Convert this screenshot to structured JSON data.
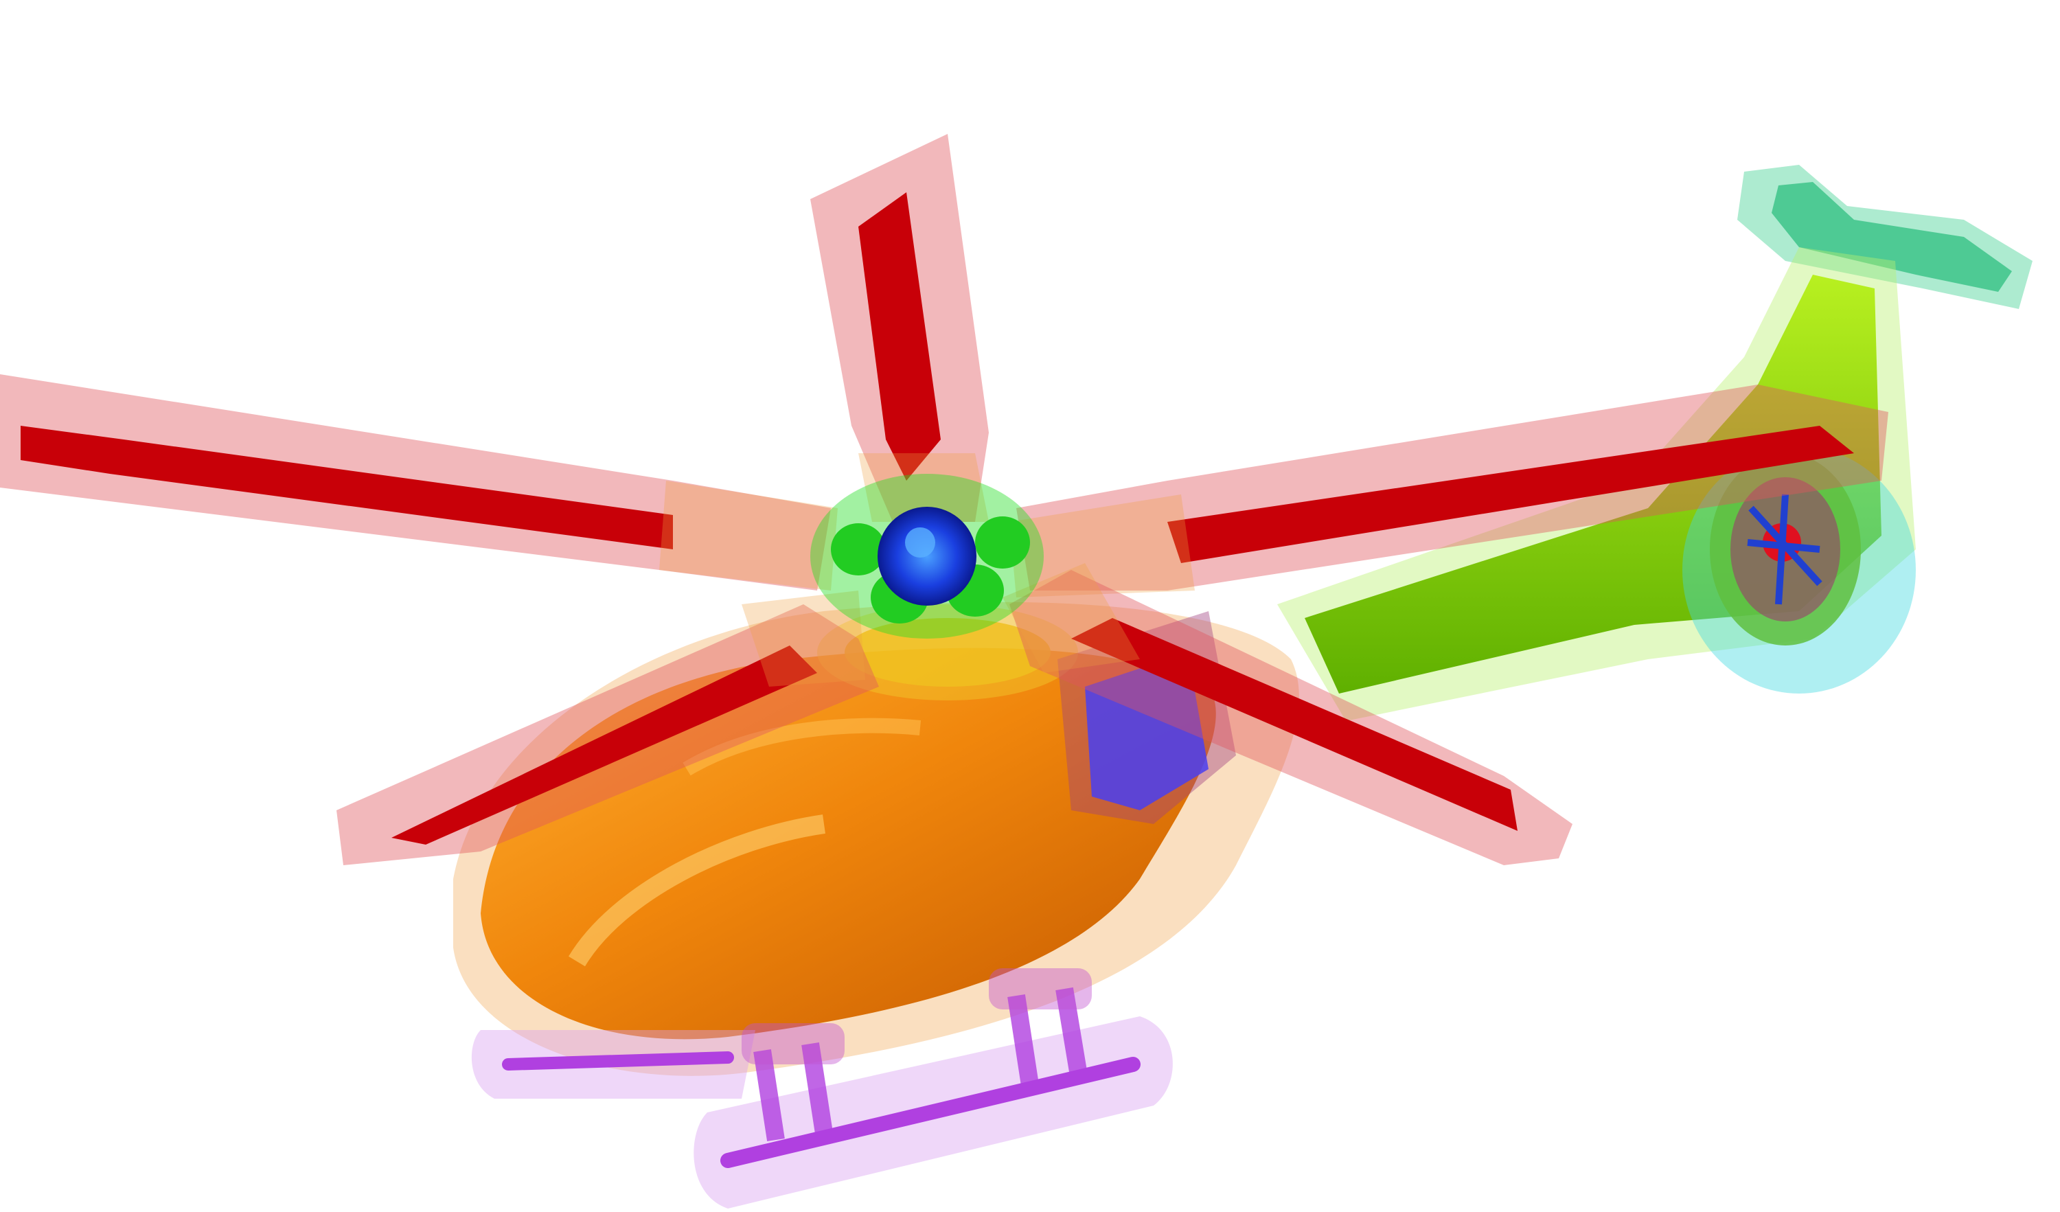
{
  "scene": {
    "subject": "helicopter",
    "background": "#ffffff",
    "colors": {
      "fuselage": "#f08a10",
      "fuselage_highlight": "#ffc040",
      "fuselage_shadow": "#c85f00",
      "fuselage_envelope": "#f2b26a",
      "blade": "#c80008",
      "blade_envelope": "#e0555c",
      "tail_boom": "#88e000",
      "tail_boom_envelope": "#b9f070",
      "tail_fin": "#3ccf90",
      "tail_rotor_guard": "#40d8e0",
      "hub": "#1a3fe0",
      "hub_ring": "#22dd22",
      "skid": "#b040e0",
      "skid_envelope": "#d8a0f0",
      "window": "#4a3ff0",
      "mast_base": "#f0d030"
    }
  }
}
